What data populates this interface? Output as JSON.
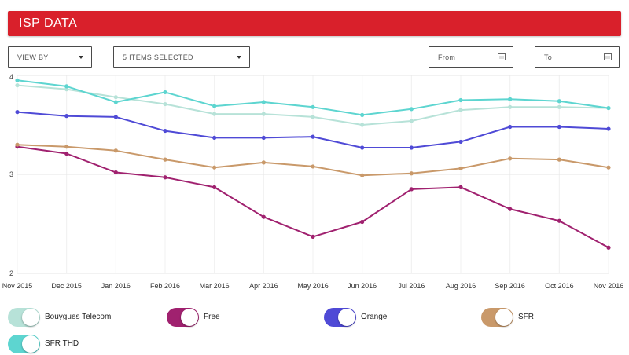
{
  "header": {
    "title": "ISP DATA"
  },
  "controls": {
    "view_by": "VIEW BY",
    "items_selected": "5 ITEMS SELECTED",
    "from_placeholder": "From",
    "to_placeholder": "To"
  },
  "chart_data": {
    "type": "line",
    "title": "",
    "xlabel": "",
    "ylabel": "",
    "categories": [
      "Nov 2015",
      "Dec 2015",
      "Jan 2016",
      "Feb 2016",
      "Mar 2016",
      "Apr 2016",
      "May 2016",
      "Jun 2016",
      "Jul 2016",
      "Aug 2016",
      "Sep 2016",
      "Oct 2016",
      "Nov 2016"
    ],
    "y_ticks": [
      "2",
      "3",
      "4"
    ],
    "ylim": [
      2,
      4
    ],
    "grid": true,
    "series": [
      {
        "name": "Bouygues Telecom",
        "color": "#b7e2d8",
        "values": [
          3.9,
          3.86,
          3.78,
          3.71,
          3.61,
          3.61,
          3.58,
          3.5,
          3.54,
          3.65,
          3.68,
          3.68,
          3.67
        ]
      },
      {
        "name": "Free",
        "color": "#a0216f",
        "values": [
          3.28,
          3.21,
          3.02,
          2.97,
          2.87,
          2.57,
          2.37,
          2.52,
          2.85,
          2.87,
          2.65,
          2.53,
          2.26
        ]
      },
      {
        "name": "Orange",
        "color": "#4f4ad6",
        "values": [
          3.63,
          3.59,
          3.58,
          3.44,
          3.37,
          3.37,
          3.38,
          3.27,
          3.27,
          3.33,
          3.48,
          3.48,
          3.46
        ]
      },
      {
        "name": "SFR",
        "color": "#c9996a",
        "values": [
          3.3,
          3.28,
          3.24,
          3.15,
          3.07,
          3.12,
          3.08,
          2.99,
          3.01,
          3.06,
          3.16,
          3.15,
          3.07
        ]
      },
      {
        "name": "SFR THD",
        "color": "#5dd5d0",
        "values": [
          3.95,
          3.89,
          3.73,
          3.83,
          3.69,
          3.73,
          3.68,
          3.6,
          3.66,
          3.75,
          3.76,
          3.74,
          3.67
        ]
      }
    ],
    "legend": "bottom"
  }
}
